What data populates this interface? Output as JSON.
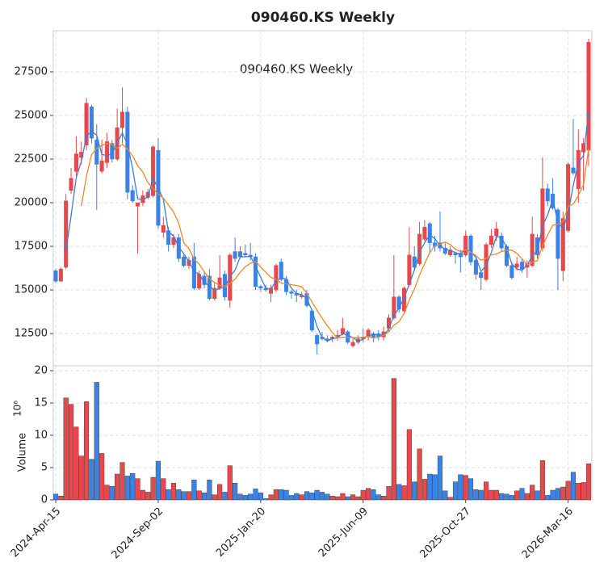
{
  "chart_data": {
    "type": "candlestick",
    "title": "090460.KS  Weekly",
    "annotation": "090460.KS  Weekly",
    "volume_label": "Volume",
    "volume_unit": "10⁶",
    "up_color": "#e8474c",
    "down_color": "#3b82e6",
    "grid": true,
    "categories": [
      "2024-Apr-15",
      null,
      null,
      null,
      null,
      null,
      null,
      null,
      null,
      null,
      null,
      null,
      null,
      null,
      null,
      null,
      null,
      null,
      null,
      null,
      "2024-Sep-02",
      null,
      null,
      null,
      null,
      null,
      null,
      null,
      null,
      null,
      null,
      null,
      null,
      null,
      null,
      null,
      null,
      null,
      null,
      null,
      "2025-Jan-20",
      null,
      null,
      null,
      null,
      null,
      null,
      null,
      null,
      null,
      null,
      null,
      null,
      null,
      null,
      null,
      null,
      null,
      null,
      null,
      "2025-Jun-09",
      null,
      null,
      null,
      null,
      null,
      null,
      null,
      null,
      null,
      null,
      null,
      null,
      null,
      null,
      null,
      null,
      null,
      null,
      null,
      "2025-Oct-27",
      null,
      null,
      null,
      null,
      null,
      null,
      null,
      null,
      null,
      null,
      null,
      null,
      null,
      null,
      null,
      null,
      null,
      null,
      null,
      "2026-Mar-16",
      null,
      null,
      null,
      null
    ],
    "open": [
      16100,
      15500,
      16300,
      20700,
      21800,
      22600,
      23300,
      25500,
      23600,
      21800,
      22300,
      23400,
      22500,
      24300,
      25200,
      20700,
      19800,
      20000,
      20300,
      20400,
      23000,
      18300,
      18400,
      17600,
      18000,
      16900,
      16400,
      16900,
      15100,
      15800,
      15800,
      14500,
      15100,
      15900,
      14400,
      17200,
      17200,
      17100,
      17000,
      16900,
      15200,
      15100,
      14800,
      15000,
      16600,
      15600,
      14900,
      14800,
      14600,
      14800,
      13800,
      12400,
      12300,
      12200,
      12200,
      12300,
      12500,
      12600,
      11800,
      12000,
      12200,
      12300,
      12500,
      12500,
      12300,
      12800,
      13400,
      14600,
      13800,
      15300,
      16900,
      16500,
      17900,
      18800,
      17700,
      17700,
      17400,
      17000,
      17100,
      17100,
      17000,
      18100,
      16700,
      16000,
      15600,
      17600,
      18100,
      18100,
      17500,
      16400,
      16300,
      16600,
      16300,
      16400,
      18000,
      17400,
      20800,
      20500,
      19600,
      16100,
      18400,
      22000,
      20800,
      22900,
      23000
    ],
    "high": [
      16200,
      16300,
      20500,
      22000,
      23800,
      23500,
      26000,
      25600,
      24500,
      23600,
      24000,
      23600,
      25400,
      26600,
      25500,
      21000,
      20000,
      20700,
      20800,
      23300,
      23700,
      19200,
      18600,
      18200,
      18200,
      17000,
      16900,
      17700,
      16100,
      16000,
      16200,
      15400,
      17000,
      16100,
      17100,
      18000,
      17500,
      17600,
      17700,
      17100,
      15300,
      15300,
      15300,
      16500,
      16800,
      15800,
      15000,
      15000,
      14900,
      15000,
      13900,
      12500,
      12600,
      12400,
      12400,
      12700,
      13400,
      12700,
      12200,
      12400,
      12800,
      12800,
      12600,
      12700,
      12900,
      13600,
      17000,
      14700,
      15200,
      18600,
      17500,
      18900,
      19000,
      18900,
      18100,
      19500,
      17700,
      17500,
      17200,
      17300,
      18400,
      18200,
      16800,
      16100,
      17700,
      18500,
      18900,
      18300,
      17600,
      16600,
      16900,
      16800,
      16700,
      19200,
      18200,
      22600,
      21100,
      21400,
      19700,
      19500,
      22300,
      24800,
      24200,
      23700,
      29400
    ],
    "low": [
      15400,
      15500,
      16200,
      20500,
      21500,
      22200,
      23000,
      23400,
      19600,
      21700,
      22000,
      22300,
      22400,
      23400,
      20200,
      20000,
      17100,
      19800,
      20200,
      20300,
      18500,
      18000,
      17200,
      17400,
      16600,
      16300,
      16200,
      15000,
      15000,
      15100,
      14400,
      14400,
      15000,
      14400,
      14000,
      16600,
      16800,
      16900,
      16700,
      15000,
      14900,
      14900,
      14300,
      14900,
      15500,
      14700,
      14500,
      14300,
      14500,
      14000,
      12600,
      11300,
      12100,
      12000,
      12000,
      12100,
      12400,
      11900,
      11700,
      11900,
      12000,
      12100,
      12000,
      12100,
      12100,
      12600,
      13300,
      13700,
      13700,
      15200,
      16100,
      16400,
      17800,
      17100,
      17200,
      17200,
      17000,
      16900,
      16500,
      16000,
      16900,
      16400,
      15600,
      15000,
      15500,
      17400,
      17800,
      17200,
      16300,
      15600,
      16100,
      16000,
      15700,
      16300,
      16800,
      17200,
      19800,
      19600,
      15000,
      15500,
      18300,
      21600,
      20000,
      20700,
      22100
    ],
    "close": [
      15500,
      16200,
      20100,
      21400,
      22800,
      22900,
      25700,
      23700,
      22200,
      22400,
      23500,
      22500,
      24300,
      25200,
      20600,
      20100,
      20000,
      20400,
      20600,
      23200,
      18700,
      18700,
      17600,
      18000,
      16800,
      16400,
      16700,
      15100,
      15900,
      15300,
      14500,
      15100,
      15700,
      14600,
      17000,
      16800,
      16900,
      17000,
      16900,
      15200,
      15100,
      15000,
      15100,
      16400,
      15600,
      14900,
      14800,
      14700,
      14700,
      14100,
      12700,
      11900,
      12200,
      12100,
      12300,
      12400,
      12800,
      12000,
      12000,
      12200,
      12300,
      12700,
      12300,
      12300,
      12600,
      13400,
      14600,
      13900,
      15100,
      17000,
      16300,
      18200,
      18600,
      17700,
      17500,
      17400,
      17100,
      17300,
      17000,
      16900,
      18100,
      16600,
      15900,
      15700,
      17600,
      18100,
      18500,
      17400,
      16400,
      15700,
      16500,
      16200,
      16500,
      18200,
      17000,
      20800,
      20100,
      19700,
      16800,
      19100,
      22200,
      21700,
      23000,
      23400,
      29200
    ],
    "volume": [
      0.9,
      0.6,
      15.8,
      14.8,
      11.3,
      6.8,
      15.2,
      6.3,
      18.2,
      7.2,
      2.3,
      2.1,
      4.0,
      5.8,
      3.7,
      4.1,
      3.3,
      1.5,
      1.2,
      3.5,
      6.0,
      3.3,
      1.6,
      2.6,
      1.6,
      1.3,
      1.3,
      3.1,
      1.4,
      1.1,
      3.1,
      0.8,
      2.4,
      1.2,
      5.3,
      2.6,
      0.9,
      0.7,
      0.9,
      1.7,
      1.1,
      0.2,
      0.8,
      1.6,
      1.6,
      1.5,
      0.7,
      1.0,
      0.8,
      1.3,
      1.1,
      1.5,
      1.2,
      0.9,
      0.6,
      0.5,
      1.0,
      0.5,
      0.8,
      0.5,
      1.5,
      1.8,
      1.6,
      0.8,
      0.6,
      2.1,
      18.8,
      2.4,
      2.2,
      10.9,
      2.8,
      7.9,
      3.2,
      4.0,
      3.9,
      6.8,
      1.4,
      0.4,
      2.8,
      3.9,
      3.8,
      3.3,
      1.6,
      1.5,
      2.8,
      1.5,
      1.5,
      1.0,
      0.9,
      0.7,
      1.4,
      1.8,
      1.0,
      2.3,
      1.4,
      6.1,
      0.7,
      1.5,
      1.8,
      2.0,
      2.9,
      4.3,
      2.6,
      2.7,
      5.6
    ],
    "lines": [
      {
        "color": "#3a7fd8",
        "values": [
          null,
          null,
          17267,
          19233,
          21433,
          22367,
          23800,
          24100,
          23867,
          22767,
          22700,
          22800,
          23433,
          24000,
          23367,
          21967,
          20233,
          20167,
          20333,
          21400,
          20833,
          20200,
          18333,
          18100,
          17467,
          17067,
          16633,
          16067,
          15900,
          15433,
          15233,
          14967,
          15100,
          15133,
          15767,
          16133,
          16900,
          16900,
          16933,
          16367,
          15733,
          15100,
          15067,
          15500,
          15700,
          15633,
          15100,
          14800,
          14733,
          14500,
          13833,
          12900,
          12267,
          12067,
          12200,
          12267,
          12500,
          12400,
          12267,
          12067,
          12167,
          12400,
          12433,
          12433,
          12400,
          12767,
          13533,
          13967,
          14533,
          15333,
          16133,
          17167,
          17700,
          18167,
          17933,
          17533,
          17333,
          17267,
          17133,
          17067,
          17333,
          17200,
          16867,
          16067,
          16400,
          17133,
          18067,
          18000,
          17433,
          16500,
          16200,
          16133,
          16400,
          16967,
          17233,
          18667,
          19300,
          20200,
          18867,
          18533,
          19367,
          21000,
          22300,
          22700,
          25200
        ]
      },
      {
        "color": "#f0882a",
        "values": [
          null,
          null,
          null,
          null,
          null,
          19817,
          21517,
          22767,
          23117,
          23283,
          23400,
          23333,
          23100,
          23350,
          23083,
          22700,
          22117,
          21767,
          21150,
          20817,
          20500,
          20267,
          19867,
          19467,
          18833,
          17700,
          17367,
          16767,
          16483,
          16033,
          15650,
          15433,
          15267,
          15183,
          15367,
          15617,
          16017,
          16333,
          16533,
          16633,
          16317,
          16017,
          15717,
          15617,
          15400,
          15350,
          15300,
          15250,
          15183,
          14800,
          14317,
          13817,
          13383,
          12950,
          12550,
          12267,
          12283,
          12300,
          12267,
          12283,
          12283,
          12333,
          12250,
          12300,
          12400,
          12600,
          12983,
          13183,
          13650,
          14433,
          15050,
          15850,
          16517,
          17150,
          17550,
          17617,
          17750,
          17600,
          17333,
          17200,
          17300,
          17167,
          16967,
          16700,
          16800,
          17000,
          17067,
          17200,
          17283,
          17283,
          17100,
          16783,
          16450,
          16583,
          16683,
          17533,
          18133,
          18717,
          18767,
          18917,
          19783,
          19933,
          20417,
          21033,
          23100
        ]
      }
    ],
    "ylim": [
      10650,
      29860
    ],
    "yticks": [
      12500,
      15000,
      17500,
      20000,
      22500,
      25000,
      27500
    ],
    "volume_ylim": [
      0,
      20.75
    ],
    "volume_ticks": [
      0,
      5,
      10,
      15,
      20
    ]
  }
}
